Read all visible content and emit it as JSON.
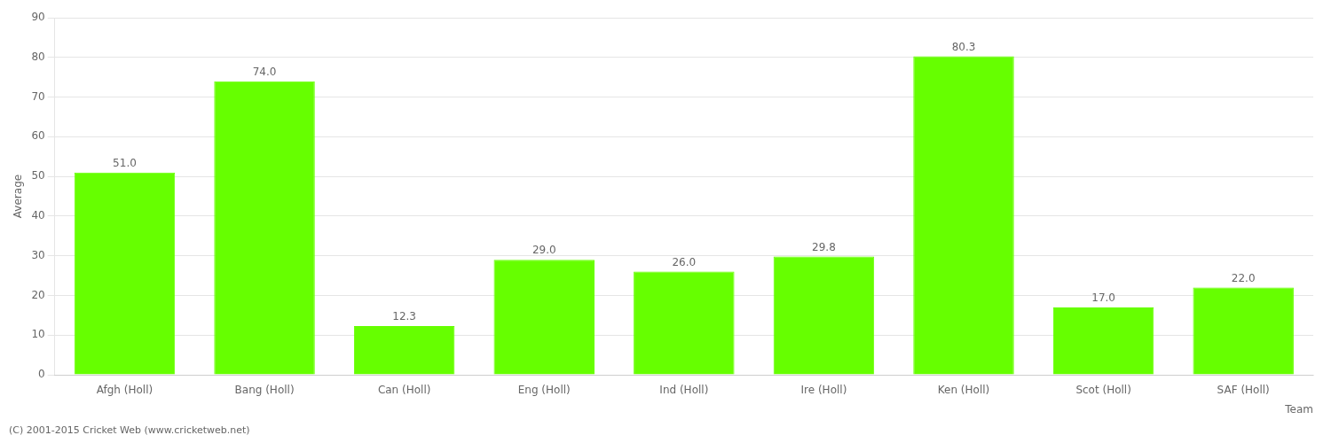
{
  "chart_data": {
    "type": "bar",
    "categories": [
      "Afgh (Holl)",
      "Bang (Holl)",
      "Can (Holl)",
      "Eng (Holl)",
      "Ind (Holl)",
      "Ire (Holl)",
      "Ken (Holl)",
      "Scot (Holl)",
      "SAF (Holl)"
    ],
    "values": [
      51.0,
      74.0,
      12.3,
      29.0,
      26.0,
      29.8,
      80.3,
      17.0,
      22.0
    ],
    "value_labels": [
      "51.0",
      "74.0",
      "12.3",
      "29.0",
      "26.0",
      "29.8",
      "80.3",
      "17.0",
      "22.0"
    ],
    "data_labels": true,
    "color": "#66ff00",
    "ylabel": "Average",
    "xlabel": "Team",
    "annotations": [
      "(C) 2001-2015 Cricket Web (www.cricketweb.net)"
    ],
    "ylim": [
      0,
      90
    ],
    "yticks": [
      0,
      10,
      20,
      30,
      40,
      50,
      60,
      70,
      80,
      90
    ],
    "grid": true
  }
}
